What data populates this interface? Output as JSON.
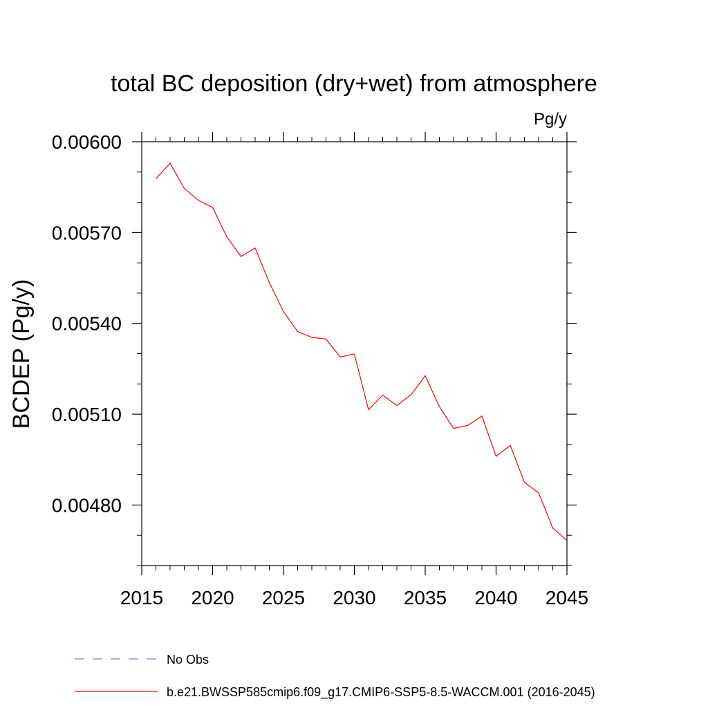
{
  "chart_data": {
    "type": "line",
    "title": "total BC deposition (dry+wet) from atmosphere",
    "units_label": "Pg/y",
    "ylabel": "BCDEP  (Pg/y)",
    "xlabel": "",
    "xlim": [
      2015,
      2045
    ],
    "ylim": [
      0.0046,
      0.006
    ],
    "x_ticks": [
      2015,
      2020,
      2025,
      2030,
      2035,
      2040,
      2045
    ],
    "x_tick_labels": [
      "2015",
      "2020",
      "2025",
      "2030",
      "2035",
      "2040",
      "2045"
    ],
    "y_ticks": [
      0.0048,
      0.0051,
      0.0054,
      0.0057,
      0.006
    ],
    "y_tick_labels": [
      "0.00480",
      "0.00510",
      "0.00540",
      "0.00570",
      "0.00600"
    ],
    "y_minor_step": 0.0001,
    "x_minor_step": 1,
    "grid": false,
    "legend_position": "bottom",
    "series": [
      {
        "name": "b.e21.BWSSP585cmip6.f09_g17.CMIP6-SSP5-8.5-WACCM.001 (2016-2045)",
        "color": "#ff0000",
        "style": "solid",
        "x": [
          2016,
          2017,
          2018,
          2019,
          2020,
          2021,
          2022,
          2023,
          2024,
          2025,
          2026,
          2027,
          2028,
          2029,
          2030,
          2031,
          2032,
          2033,
          2034,
          2035,
          2036,
          2037,
          2038,
          2039,
          2040,
          2041,
          2042,
          2043,
          2044,
          2045
        ],
        "values": [
          0.005878,
          0.005929,
          0.005846,
          0.005806,
          0.005783,
          0.005686,
          0.005621,
          0.005649,
          0.005535,
          0.005439,
          0.005373,
          0.005354,
          0.005348,
          0.005289,
          0.005299,
          0.005115,
          0.005163,
          0.005129,
          0.005164,
          0.005227,
          0.005125,
          0.005053,
          0.005063,
          0.005094,
          0.004961,
          0.004997,
          0.004875,
          0.00484,
          0.004724,
          0.004683
        ]
      },
      {
        "name": "No Obs",
        "color": "#8878c8",
        "style": "dashed",
        "x": [],
        "values": []
      }
    ]
  }
}
